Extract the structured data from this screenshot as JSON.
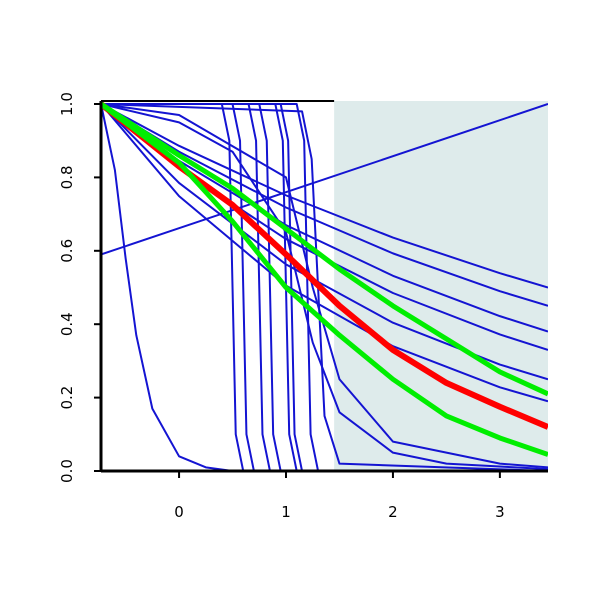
{
  "chart_data": {
    "type": "line",
    "xlim": [
      -0.73,
      3.45
    ],
    "ylim": [
      0,
      1
    ],
    "xticks": [
      0,
      1,
      2,
      3
    ],
    "yticks": [
      {
        "value": 0,
        "label": "0.0"
      },
      {
        "value": 0.2,
        "label": "0.2"
      },
      {
        "value": 0.4,
        "label": "0.4"
      },
      {
        "value": 0.6,
        "label": "0.6"
      },
      {
        "value": 0.8,
        "label": "0.8"
      },
      {
        "value": 1,
        "label": "1.0"
      }
    ],
    "shade": {
      "x": [
        1.45,
        3.45
      ],
      "y": [
        0,
        1
      ],
      "color": "#deebeb"
    },
    "series": [
      {
        "color": "#1414d2",
        "width": 2,
        "x": [
          -0.73,
          3.45
        ],
        "values": [
          0.59,
          1.0
        ]
      },
      {
        "color": "#1414d2",
        "width": 2,
        "x": [
          -0.73,
          0,
          1,
          2,
          3,
          3.45
        ],
        "values": [
          1,
          0.886,
          0.751,
          0.636,
          0.539,
          0.5
        ]
      },
      {
        "color": "#1414d2",
        "width": 2,
        "x": [
          -0.73,
          0,
          1,
          2,
          3,
          3.45
        ],
        "values": [
          1,
          0.87,
          0.718,
          0.593,
          0.49,
          0.45
        ]
      },
      {
        "color": "#1414d2",
        "width": 2,
        "x": [
          -0.73,
          0,
          1,
          2,
          3,
          3.45
        ],
        "values": [
          1,
          0.845,
          0.67,
          0.532,
          0.422,
          0.38
        ]
      },
      {
        "color": "#1414d2",
        "width": 2,
        "x": [
          -0.73,
          0,
          1,
          2,
          3,
          3.45
        ],
        "values": [
          1,
          0.824,
          0.632,
          0.485,
          0.372,
          0.33
        ]
      },
      {
        "color": "#1414d2",
        "width": 2,
        "x": [
          -0.73,
          0,
          1,
          2,
          3,
          3.45
        ],
        "values": [
          1,
          0.785,
          0.563,
          0.404,
          0.29,
          0.25
        ]
      },
      {
        "color": "#1414d2",
        "width": 2,
        "x": [
          -0.73,
          0,
          1,
          2,
          3,
          3.45
        ],
        "values": [
          1,
          0.749,
          0.505,
          0.34,
          0.228,
          0.19
        ]
      },
      {
        "color": "#1414d2",
        "width": 2,
        "x": [
          -0.73,
          -0.6,
          -0.5,
          -0.4,
          -0.25,
          0,
          0.25,
          0.5,
          3.45
        ],
        "values": [
          1,
          0.82,
          0.58,
          0.37,
          0.17,
          0.04,
          0.01,
          0,
          0
        ]
      },
      {
        "color": "#1414d2",
        "width": 2,
        "x": [
          -0.73,
          0,
          0.5,
          1,
          1.25,
          1.5,
          2,
          2.5,
          3.45
        ],
        "values": [
          1,
          0.95,
          0.87,
          0.65,
          0.35,
          0.16,
          0.05,
          0.02,
          0.005
        ]
      },
      {
        "color": "#1414d2",
        "width": 2,
        "x": [
          -0.73,
          0,
          1,
          1.25,
          1.5,
          2,
          3,
          3.45
        ],
        "values": [
          1,
          0.97,
          0.8,
          0.5,
          0.25,
          0.08,
          0.02,
          0.01
        ]
      },
      {
        "color": "#1414d2",
        "width": 2,
        "x": [
          -0.73,
          0.4,
          0.47,
          0.5,
          0.53,
          0.6,
          3.45
        ],
        "values": [
          1,
          1,
          0.9,
          0.5,
          0.1,
          0,
          0
        ]
      },
      {
        "color": "#1414d2",
        "width": 2,
        "x": [
          -0.73,
          0.5,
          0.57,
          0.6,
          0.63,
          0.7,
          3.45
        ],
        "values": [
          1,
          1,
          0.9,
          0.5,
          0.1,
          0,
          0
        ]
      },
      {
        "color": "#1414d2",
        "width": 2,
        "x": [
          -0.73,
          0.65,
          0.72,
          0.75,
          0.78,
          0.85,
          3.45
        ],
        "values": [
          1,
          1,
          0.9,
          0.5,
          0.1,
          0,
          0
        ]
      },
      {
        "color": "#1414d2",
        "width": 2,
        "x": [
          -0.73,
          0.75,
          0.82,
          0.85,
          0.88,
          0.95,
          3.45
        ],
        "values": [
          1,
          1,
          0.9,
          0.5,
          0.1,
          0,
          0
        ]
      },
      {
        "color": "#1414d2",
        "width": 2,
        "x": [
          -0.73,
          0.9,
          0.97,
          1,
          1.03,
          1.1,
          3.45
        ],
        "values": [
          1,
          1,
          0.9,
          0.5,
          0.1,
          0,
          0
        ]
      },
      {
        "color": "#1414d2",
        "width": 2,
        "x": [
          -0.73,
          0.95,
          1.02,
          1.05,
          1.08,
          1.15,
          3.45
        ],
        "values": [
          1,
          1,
          0.9,
          0.5,
          0.1,
          0,
          0
        ]
      },
      {
        "color": "#1414d2",
        "width": 2,
        "x": [
          -0.73,
          1.1,
          1.17,
          1.2,
          1.23,
          1.3,
          3.45
        ],
        "values": [
          1,
          1,
          0.9,
          0.5,
          0.1,
          0,
          0
        ]
      },
      {
        "color": "#1414d2",
        "width": 2,
        "x": [
          -0.73,
          1.15,
          1.24,
          1.3,
          1.36,
          1.5,
          3.45
        ],
        "values": [
          1,
          0.98,
          0.85,
          0.5,
          0.15,
          0.02,
          0
        ]
      },
      {
        "color": "#ff0000",
        "width": 6,
        "x": [
          -0.73,
          0,
          0.5,
          1,
          1.5,
          2,
          2.5,
          3,
          3.45
        ],
        "values": [
          1,
          0.83,
          0.725,
          0.59,
          0.45,
          0.33,
          0.24,
          0.175,
          0.12
        ]
      },
      {
        "color": "#00ee00",
        "width": 5,
        "x": [
          -0.73,
          0,
          0.5,
          1,
          1.5,
          2,
          2.5,
          3,
          3.45
        ],
        "values": [
          1,
          0.84,
          0.68,
          0.5,
          0.37,
          0.25,
          0.15,
          0.09,
          0.045
        ]
      },
      {
        "color": "#00ee00",
        "width": 5,
        "x": [
          -0.73,
          0,
          0.5,
          1,
          1.5,
          2,
          2.5,
          3,
          3.45
        ],
        "values": [
          1,
          0.86,
          0.77,
          0.66,
          0.55,
          0.45,
          0.36,
          0.27,
          0.21
        ]
      }
    ]
  }
}
